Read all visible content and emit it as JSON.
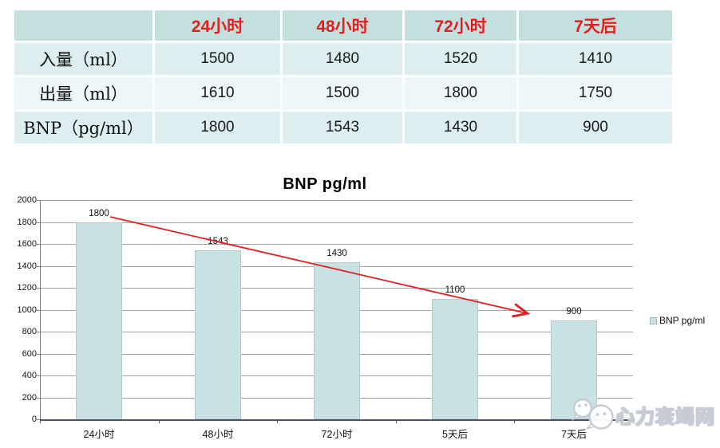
{
  "table": {
    "header": [
      "",
      "24小时",
      "48小时",
      "72小时",
      "7天后"
    ],
    "rows": [
      {
        "label": "入量（ml）",
        "values": [
          "1500",
          "1480",
          "1520",
          "1410"
        ]
      },
      {
        "label": "出量（ml）",
        "values": [
          "1610",
          "1500",
          "1800",
          "1750"
        ]
      },
      {
        "label": "BNP（pg/ml）",
        "values": [
          "1800",
          "1543",
          "1430",
          "900"
        ]
      }
    ],
    "colors": {
      "header_bg": "#c3e0de",
      "header_text": "#e01f1f",
      "row_a": "#dceef0",
      "row_b": "#edf6f8"
    }
  },
  "chart_data": {
    "type": "bar",
    "title": "BNP pg/ml",
    "categories": [
      "24小时",
      "48小时",
      "72小时",
      "5天后",
      "7天后"
    ],
    "values": [
      1800,
      1543,
      1430,
      1100,
      900
    ],
    "series_name": "BNP pg/ml",
    "xlabel": "",
    "ylabel": "",
    "ylim": [
      0,
      2000
    ],
    "ytick_step": 200,
    "grid": true,
    "legend_position": "right",
    "bar_color": "#c8e2e4",
    "trend_color": "#e02020",
    "annotations": [
      {
        "type": "trend-arrow",
        "direction": "down",
        "from_value": 1800,
        "to_value": 1100
      }
    ]
  },
  "watermark": {
    "text": "心力衰竭网",
    "icon": "wechat-icon",
    "color": "#c3c9d2"
  }
}
